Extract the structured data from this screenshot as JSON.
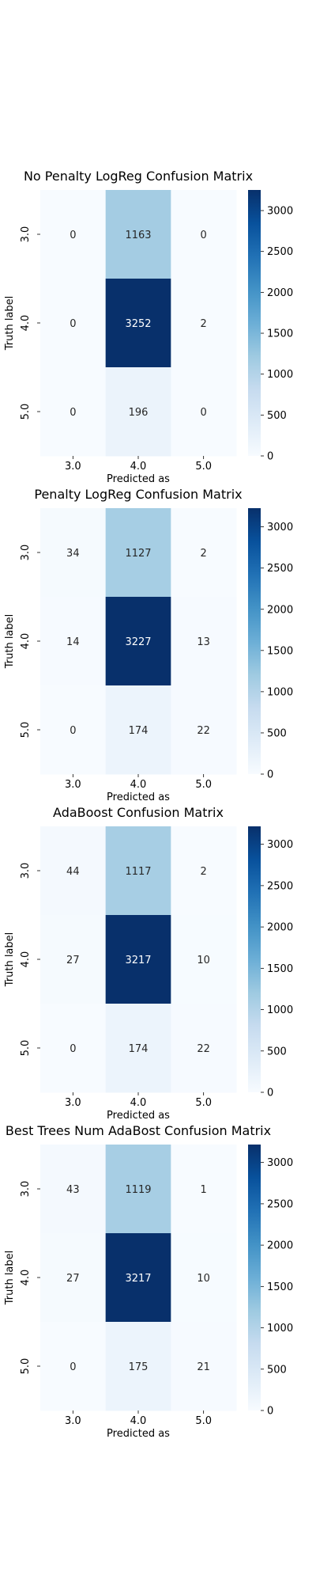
{
  "chart_data": [
    {
      "type": "heatmap",
      "title": "No Penalty LogReg Confusion Matrix",
      "xlabel": "Predicted as",
      "ylabel": "Truth label",
      "x_categories": [
        "3.0",
        "4.0",
        "5.0"
      ],
      "y_categories": [
        "3.0",
        "4.0",
        "5.0"
      ],
      "values": [
        [
          0,
          1163,
          0
        ],
        [
          0,
          3252,
          2
        ],
        [
          0,
          196,
          0
        ]
      ],
      "colorbar": {
        "ticks": [
          "0",
          "500",
          "1000",
          "1500",
          "2000",
          "2500",
          "3000"
        ],
        "range": [
          0,
          3252
        ],
        "colormap": "Blues"
      }
    },
    {
      "type": "heatmap",
      "title": "Penalty LogReg Confusion Matrix",
      "xlabel": "Predicted as",
      "ylabel": "Truth label",
      "x_categories": [
        "3.0",
        "4.0",
        "5.0"
      ],
      "y_categories": [
        "3.0",
        "4.0",
        "5.0"
      ],
      "values": [
        [
          34,
          1127,
          2
        ],
        [
          14,
          3227,
          13
        ],
        [
          0,
          174,
          22
        ]
      ],
      "colorbar": {
        "ticks": [
          "0",
          "500",
          "1000",
          "1500",
          "2000",
          "2500",
          "3000"
        ],
        "range": [
          0,
          3227
        ],
        "colormap": "Blues"
      }
    },
    {
      "type": "heatmap",
      "title": "AdaBoost Confusion Matrix",
      "xlabel": "Predicted as",
      "ylabel": "Truth label",
      "x_categories": [
        "3.0",
        "4.0",
        "5.0"
      ],
      "y_categories": [
        "3.0",
        "4.0",
        "5.0"
      ],
      "values": [
        [
          44,
          1117,
          2
        ],
        [
          27,
          3217,
          10
        ],
        [
          0,
          174,
          22
        ]
      ],
      "colorbar": {
        "ticks": [
          "0",
          "500",
          "1000",
          "1500",
          "2000",
          "2500",
          "3000"
        ],
        "range": [
          0,
          3217
        ],
        "colormap": "Blues"
      }
    },
    {
      "type": "heatmap",
      "title": "Best Trees Num AdaBost Confusion Matrix",
      "xlabel": "Predicted as",
      "ylabel": "Truth label",
      "x_categories": [
        "3.0",
        "4.0",
        "5.0"
      ],
      "y_categories": [
        "3.0",
        "4.0",
        "5.0"
      ],
      "values": [
        [
          43,
          1119,
          1
        ],
        [
          27,
          3217,
          10
        ],
        [
          0,
          175,
          21
        ]
      ],
      "colorbar": {
        "ticks": [
          "0",
          "500",
          "1000",
          "1500",
          "2000",
          "2500",
          "3000"
        ],
        "range": [
          0,
          3217
        ],
        "colormap": "Blues"
      }
    }
  ]
}
